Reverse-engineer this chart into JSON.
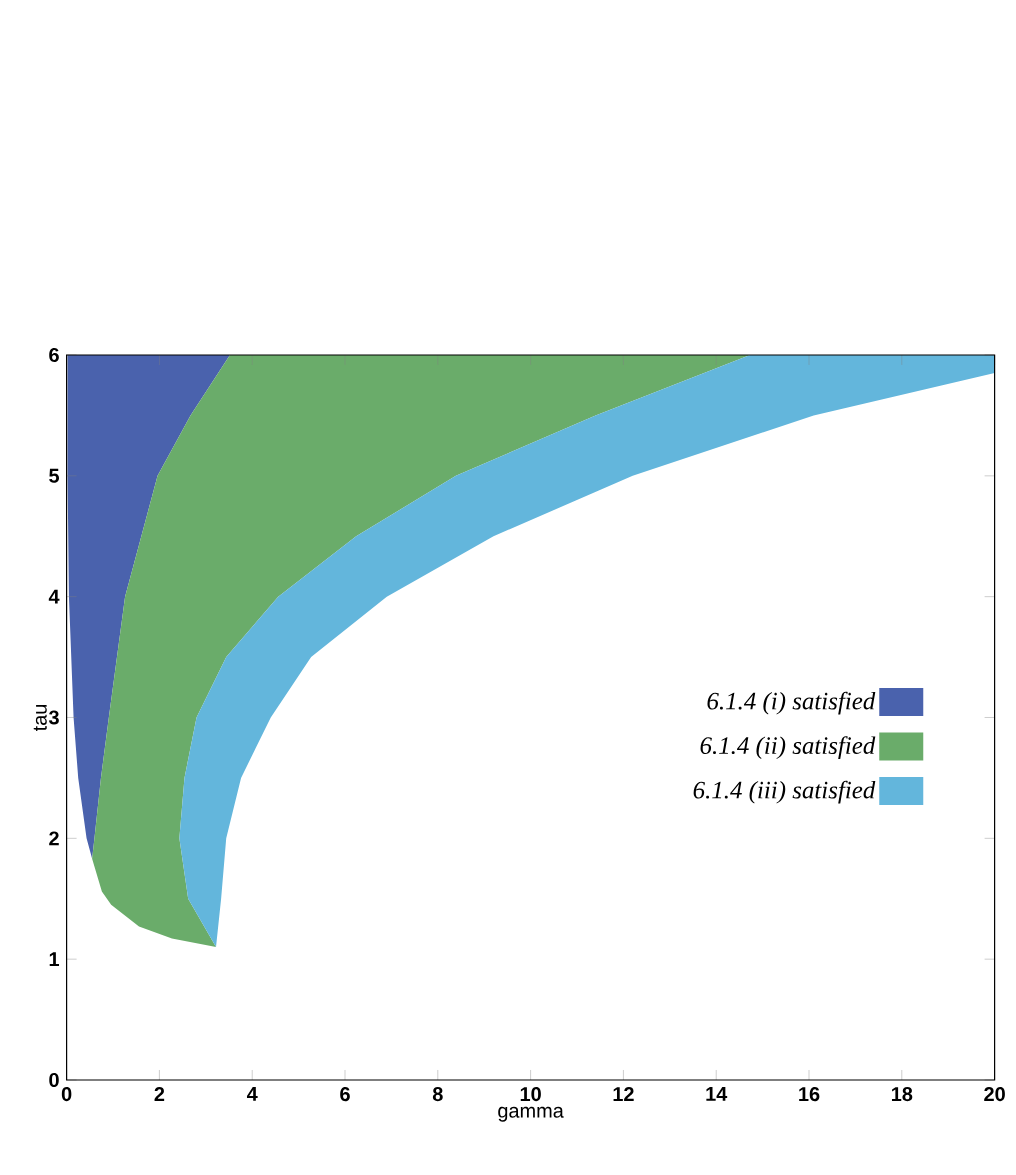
{
  "chart_data": {
    "type": "area",
    "xlabel": "gamma",
    "ylabel": "tau",
    "xlim": [
      0,
      20
    ],
    "ylim": [
      0,
      6
    ],
    "xticks": [
      0,
      2,
      4,
      6,
      8,
      10,
      12,
      14,
      16,
      18,
      20
    ],
    "yticks": [
      0,
      1,
      2,
      3,
      4,
      5,
      6
    ],
    "legend": "right",
    "grid": false,
    "series": [
      {
        "name": "6.1.4 (i) satisfied",
        "color": "#4a62ad",
        "x": [
          0.02,
          0.02,
          0.05,
          0.15,
          0.25,
          0.43,
          0.55,
          0.6,
          0.74,
          0.91,
          1.26,
          1.96,
          2.67,
          3.52
        ],
        "values": [
          6,
          5,
          4,
          3,
          2.5,
          2,
          1.83,
          2,
          2.5,
          3,
          4,
          5,
          5.5,
          6
        ]
      },
      {
        "name": "6.1.4 (ii) satisfied",
        "color": "#6aac6a",
        "x": [
          3.52,
          2.67,
          1.96,
          1.26,
          0.91,
          0.74,
          0.6,
          0.55,
          0.76,
          0.96,
          1.56,
          2.27,
          3.22,
          2.62,
          2.43,
          2.54,
          2.8,
          3.44,
          4.56,
          6.24,
          8.39,
          11.4,
          14.73
        ],
        "values": [
          6,
          5.5,
          5,
          4,
          3,
          2.5,
          2,
          1.83,
          1.56,
          1.45,
          1.27,
          1.17,
          1.1,
          1.5,
          2,
          2.5,
          3,
          3.5,
          4,
          4.5,
          5,
          5.5,
          6
        ]
      },
      {
        "name": "6.1.4 (iii) satisfied",
        "color": "#63b6dc",
        "x": [
          3.22,
          2.62,
          2.43,
          2.54,
          2.8,
          3.44,
          4.56,
          6.24,
          8.39,
          11.4,
          14.73,
          20,
          20,
          16.1,
          12.2,
          9.2,
          6.9,
          5.27,
          4.4,
          3.76,
          3.44,
          3.33
        ],
        "values": [
          1.1,
          1.5,
          2,
          2.5,
          3,
          3.5,
          4,
          4.5,
          5,
          5.5,
          6,
          6,
          5.85,
          5.5,
          5,
          4.5,
          4,
          3.5,
          3,
          2.5,
          2,
          1.5
        ]
      }
    ]
  }
}
